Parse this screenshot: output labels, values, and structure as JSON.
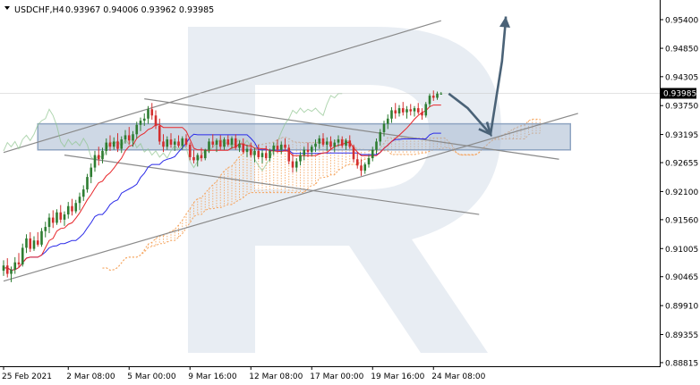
{
  "chart_data": {
    "type": "candlestick",
    "title": "USDCHF,H4",
    "ohlc_header": "0.93967 0.94006 0.93962 0.93985",
    "last_price_label": "0.93985",
    "last_price": 0.93985,
    "colors": {
      "bull": "#2e7d32",
      "bear": "#d32f2f",
      "tenkan": "#e8262a",
      "kijun": "#2a2ae8",
      "cloud": "#f5a35b",
      "chikou": "#8fc48f",
      "channel": "#8a8a8a",
      "zone": "#a6b8d0",
      "arrow": "#4a6277",
      "watermark": "#e7ecf2"
    },
    "y_ticks": [
      "0.95400",
      "0.94850",
      "0.94305",
      "0.93750",
      "0.93195",
      "0.92655",
      "0.92100",
      "0.91560",
      "0.91005",
      "0.90465",
      "0.89910",
      "0.89355",
      "0.88815"
    ],
    "y_tick_values": [
      0.954,
      0.9485,
      0.94305,
      0.9375,
      0.93195,
      0.92655,
      0.921,
      0.9156,
      0.91005,
      0.90465,
      0.8991,
      0.89355,
      0.88815
    ],
    "ylim": [
      0.8878,
      0.9564
    ],
    "x_ticks": [
      "25 Feb 2021",
      "2 Mar 08:00",
      "5 Mar 00:00",
      "9 Mar 16:00",
      "12 Mar 08:00",
      "17 Mar 00:00",
      "19 Mar 16:00",
      "24 Mar 08:00"
    ],
    "x_tick_bars": [
      0,
      17,
      33,
      49,
      65,
      81,
      97,
      113
    ],
    "candles": [
      [
        0.9058,
        0.9078,
        0.9048,
        0.9068
      ],
      [
        0.9068,
        0.9082,
        0.9045,
        0.9052
      ],
      [
        0.9052,
        0.9066,
        0.9036,
        0.906
      ],
      [
        0.906,
        0.9084,
        0.9052,
        0.9074
      ],
      [
        0.9074,
        0.9092,
        0.9064,
        0.907
      ],
      [
        0.907,
        0.911,
        0.9066,
        0.9102
      ],
      [
        0.9102,
        0.9128,
        0.9092,
        0.912
      ],
      [
        0.912,
        0.9132,
        0.9094,
        0.91
      ],
      [
        0.91,
        0.9124,
        0.9096,
        0.9116
      ],
      [
        0.9116,
        0.9132,
        0.9104,
        0.9108
      ],
      [
        0.9108,
        0.914,
        0.9104,
        0.9134
      ],
      [
        0.9134,
        0.9152,
        0.9122,
        0.9142
      ],
      [
        0.9142,
        0.9168,
        0.913,
        0.916
      ],
      [
        0.916,
        0.9174,
        0.914,
        0.915
      ],
      [
        0.915,
        0.9176,
        0.9146,
        0.917
      ],
      [
        0.917,
        0.9184,
        0.915,
        0.9156
      ],
      [
        0.9156,
        0.9172,
        0.9144,
        0.9166
      ],
      [
        0.9166,
        0.919,
        0.9158,
        0.9182
      ],
      [
        0.9182,
        0.9196,
        0.9164,
        0.9172
      ],
      [
        0.9172,
        0.9194,
        0.9168,
        0.9188
      ],
      [
        0.9188,
        0.9208,
        0.9174,
        0.92
      ],
      [
        0.92,
        0.9222,
        0.9192,
        0.9214
      ],
      [
        0.9214,
        0.9244,
        0.9208,
        0.9238
      ],
      [
        0.9238,
        0.9264,
        0.9226,
        0.9256
      ],
      [
        0.9256,
        0.9288,
        0.9248,
        0.928
      ],
      [
        0.928,
        0.9296,
        0.926,
        0.9272
      ],
      [
        0.9272,
        0.9294,
        0.9264,
        0.9288
      ],
      [
        0.9288,
        0.9312,
        0.928,
        0.9304
      ],
      [
        0.9304,
        0.9318,
        0.9288,
        0.9296
      ],
      [
        0.9296,
        0.9314,
        0.929,
        0.9306
      ],
      [
        0.9306,
        0.9322,
        0.9286,
        0.9292
      ],
      [
        0.9292,
        0.9316,
        0.9284,
        0.931
      ],
      [
        0.931,
        0.9328,
        0.9302,
        0.9318
      ],
      [
        0.9318,
        0.9334,
        0.93,
        0.9308
      ],
      [
        0.9308,
        0.9326,
        0.9296,
        0.932
      ],
      [
        0.932,
        0.9344,
        0.9312,
        0.9338
      ],
      [
        0.9338,
        0.9352,
        0.9326,
        0.9346
      ],
      [
        0.9346,
        0.936,
        0.9336,
        0.935
      ],
      [
        0.935,
        0.9374,
        0.934,
        0.9368
      ],
      [
        0.9368,
        0.938,
        0.9348,
        0.9356
      ],
      [
        0.9356,
        0.9366,
        0.933,
        0.9336
      ],
      [
        0.9336,
        0.935,
        0.93,
        0.9306
      ],
      [
        0.9306,
        0.932,
        0.9286,
        0.9296
      ],
      [
        0.9296,
        0.9316,
        0.929,
        0.931
      ],
      [
        0.931,
        0.9322,
        0.9294,
        0.93
      ],
      [
        0.93,
        0.9312,
        0.9288,
        0.9306
      ],
      [
        0.9306,
        0.9318,
        0.9294,
        0.9298
      ],
      [
        0.9298,
        0.9316,
        0.929,
        0.9312
      ],
      [
        0.9312,
        0.932,
        0.9296,
        0.93
      ],
      [
        0.93,
        0.9304,
        0.927,
        0.9276
      ],
      [
        0.9276,
        0.929,
        0.9264,
        0.927
      ],
      [
        0.927,
        0.9284,
        0.9258,
        0.928
      ],
      [
        0.928,
        0.9294,
        0.9268,
        0.9274
      ],
      [
        0.9274,
        0.9292,
        0.927,
        0.929
      ],
      [
        0.929,
        0.9312,
        0.9284,
        0.9306
      ],
      [
        0.9306,
        0.932,
        0.9294,
        0.93
      ],
      [
        0.93,
        0.9312,
        0.9286,
        0.9308
      ],
      [
        0.9308,
        0.9318,
        0.929,
        0.9296
      ],
      [
        0.9296,
        0.9314,
        0.929,
        0.931
      ],
      [
        0.931,
        0.9318,
        0.9296,
        0.93
      ],
      [
        0.93,
        0.9316,
        0.9292,
        0.9312
      ],
      [
        0.9312,
        0.932,
        0.929,
        0.9294
      ],
      [
        0.9294,
        0.9308,
        0.9286,
        0.9302
      ],
      [
        0.9302,
        0.9312,
        0.9282,
        0.9286
      ],
      [
        0.9286,
        0.93,
        0.9276,
        0.9292
      ],
      [
        0.9292,
        0.9304,
        0.9276,
        0.928
      ],
      [
        0.928,
        0.9294,
        0.9266,
        0.9288
      ],
      [
        0.9288,
        0.93,
        0.9272,
        0.9276
      ],
      [
        0.9276,
        0.929,
        0.9264,
        0.9284
      ],
      [
        0.9284,
        0.9298,
        0.927,
        0.9274
      ],
      [
        0.9274,
        0.9292,
        0.9268,
        0.9288
      ],
      [
        0.9288,
        0.9304,
        0.928,
        0.9298
      ],
      [
        0.9298,
        0.931,
        0.9284,
        0.929
      ],
      [
        0.929,
        0.9306,
        0.9282,
        0.93
      ],
      [
        0.93,
        0.9312,
        0.9288,
        0.9294
      ],
      [
        0.9294,
        0.93,
        0.9262,
        0.9268
      ],
      [
        0.9268,
        0.9282,
        0.9246,
        0.9256
      ],
      [
        0.9256,
        0.9274,
        0.9248,
        0.9268
      ],
      [
        0.9268,
        0.9286,
        0.926,
        0.928
      ],
      [
        0.928,
        0.9296,
        0.927,
        0.929
      ],
      [
        0.929,
        0.9304,
        0.9276,
        0.9286
      ],
      [
        0.9286,
        0.93,
        0.9278,
        0.9296
      ],
      [
        0.9296,
        0.931,
        0.9286,
        0.9302
      ],
      [
        0.9302,
        0.9318,
        0.9292,
        0.9312
      ],
      [
        0.9312,
        0.9322,
        0.9296,
        0.93
      ],
      [
        0.93,
        0.9314,
        0.9288,
        0.9306
      ],
      [
        0.9306,
        0.9316,
        0.929,
        0.9296
      ],
      [
        0.9296,
        0.931,
        0.9286,
        0.9304
      ],
      [
        0.9304,
        0.9318,
        0.9296,
        0.931
      ],
      [
        0.931,
        0.9316,
        0.9294,
        0.9298
      ],
      [
        0.9298,
        0.9312,
        0.929,
        0.9308
      ],
      [
        0.9308,
        0.9318,
        0.9292,
        0.9296
      ],
      [
        0.9296,
        0.93,
        0.9266,
        0.9272
      ],
      [
        0.9272,
        0.9284,
        0.9254,
        0.926
      ],
      [
        0.926,
        0.9272,
        0.924,
        0.925
      ],
      [
        0.925,
        0.9266,
        0.9244,
        0.9262
      ],
      [
        0.9262,
        0.928,
        0.9256,
        0.9274
      ],
      [
        0.9274,
        0.9296,
        0.9268,
        0.929
      ],
      [
        0.929,
        0.9312,
        0.9282,
        0.9306
      ],
      [
        0.9306,
        0.933,
        0.9298,
        0.9324
      ],
      [
        0.9324,
        0.9346,
        0.9316,
        0.934
      ],
      [
        0.934,
        0.9358,
        0.933,
        0.935
      ],
      [
        0.935,
        0.9372,
        0.9342,
        0.9366
      ],
      [
        0.9366,
        0.938,
        0.935,
        0.936
      ],
      [
        0.936,
        0.9376,
        0.9354,
        0.937
      ],
      [
        0.937,
        0.9382,
        0.9356,
        0.9362
      ],
      [
        0.9362,
        0.9374,
        0.935,
        0.9368
      ],
      [
        0.9368,
        0.9378,
        0.9356,
        0.9364
      ],
      [
        0.9364,
        0.9374,
        0.9354,
        0.937
      ],
      [
        0.937,
        0.938,
        0.9358,
        0.9362
      ],
      [
        0.9362,
        0.937,
        0.9348,
        0.9356
      ],
      [
        0.9356,
        0.9382,
        0.9352,
        0.9378
      ],
      [
        0.9378,
        0.9398,
        0.9372,
        0.9394
      ],
      [
        0.9394,
        0.9404,
        0.9384,
        0.939
      ],
      [
        0.939,
        0.9402,
        0.9386,
        0.9398
      ],
      [
        0.9397,
        0.9401,
        0.9396,
        0.9398
      ]
    ],
    "channel_upper": {
      "bar": [
        0,
        115
      ],
      "price": [
        0.9285,
        0.9538
      ]
    },
    "channel_lower": {
      "bar": [
        0,
        151
      ],
      "price": [
        0.9038,
        0.936
      ]
    },
    "channel_descending_top": {
      "bar": [
        37,
        146
      ],
      "price": [
        0.9388,
        0.9272
      ]
    },
    "channel_descending_bottom": {
      "bar": [
        16,
        125
      ],
      "price": [
        0.928,
        0.9166
      ]
    },
    "resistance_zone": {
      "bar": [
        9,
        149
      ],
      "price": [
        0.929,
        0.934
      ]
    },
    "forecast_path": {
      "bar": [
        117,
        122,
        128,
        131,
        132
      ],
      "price": [
        0.9398,
        0.937,
        0.932,
        0.946,
        0.954
      ]
    },
    "forecast_arrow_end": {
      "bar": 132,
      "price": 0.9546
    }
  }
}
